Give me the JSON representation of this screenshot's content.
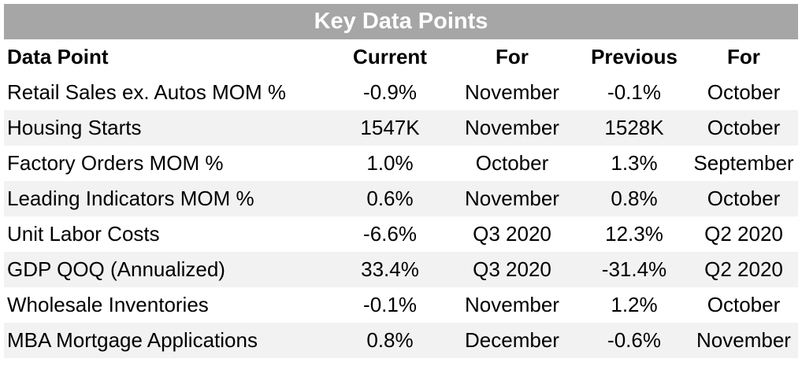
{
  "header": {
    "title": "Key Data Points"
  },
  "table": {
    "columns": [
      "Data Point",
      "Current",
      "For",
      "Previous",
      "For"
    ],
    "rows": [
      [
        "Retail Sales ex. Autos MOM %",
        "-0.9%",
        "November",
        "-0.1%",
        "October"
      ],
      [
        "Housing Starts",
        "1547K",
        "November",
        "1528K",
        "October"
      ],
      [
        "Factory Orders MOM %",
        "1.0%",
        "October",
        "1.3%",
        "September"
      ],
      [
        "Leading Indicators MOM %",
        "0.6%",
        "November",
        "0.8%",
        "October"
      ],
      [
        "Unit Labor Costs",
        "-6.6%",
        "Q3 2020",
        "12.3%",
        "Q2 2020"
      ],
      [
        "GDP QOQ (Annualized)",
        "33.4%",
        "Q3 2020",
        "-31.4%",
        "Q2 2020"
      ],
      [
        "Wholesale Inventories",
        "-0.1%",
        "November",
        "1.2%",
        "October"
      ],
      [
        "MBA Mortgage Applications",
        "0.8%",
        "December",
        "-0.6%",
        "November"
      ]
    ]
  }
}
